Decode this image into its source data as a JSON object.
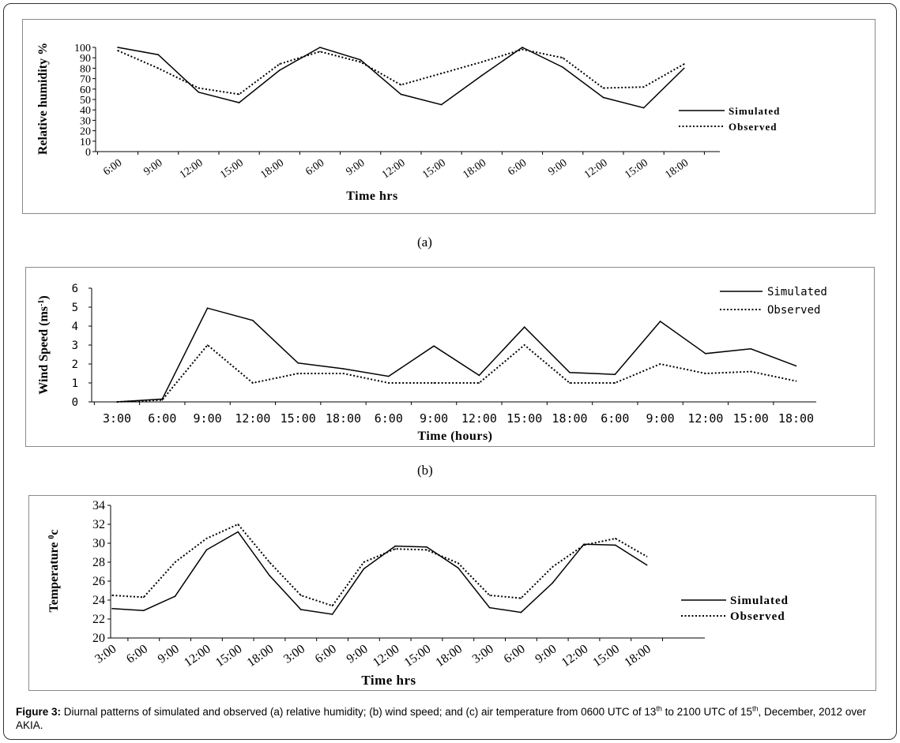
{
  "figure": {
    "sublabels": [
      "(a)",
      "(b)"
    ],
    "caption_label": "Figure 3:",
    "caption_parts": [
      "Diurnal patterns of simulated and observed (a) relative humidity; (b) wind speed; and (c) air temperature from 0600 UTC of 13",
      "th",
      " to 2100 UTC of 15",
      "th",
      ", December, 2012 over AKIA."
    ]
  },
  "chart_data": [
    {
      "type": "line",
      "categories": [
        "6:00",
        "9:00",
        "12:00",
        "15:00",
        "18:00",
        "6:00",
        "9:00",
        "12:00",
        "15:00",
        "18:00",
        "6:00",
        "9:00",
        "12:00",
        "15:00",
        "18:00"
      ],
      "series": [
        {
          "name": "Simulated",
          "style": "solid",
          "color": "#000000",
          "values": [
            100,
            93,
            57,
            47,
            78,
            100,
            88,
            55,
            45,
            73,
            100,
            81,
            52,
            42,
            80
          ]
        },
        {
          "name": "Observed",
          "style": "dotted",
          "color": "#000000",
          "values": [
            97,
            80,
            61,
            55,
            84,
            96,
            86,
            64,
            75,
            86,
            98,
            90,
            61,
            62,
            84
          ]
        }
      ],
      "xlabel": "Time hrs",
      "ylabel": "Relative humidity %",
      "ylim": [
        0,
        100
      ],
      "yticks": [
        0,
        10,
        20,
        30,
        40,
        50,
        60,
        70,
        80,
        90,
        100
      ],
      "grid": false,
      "legend_position": "right"
    },
    {
      "type": "line",
      "categories": [
        "3:00",
        "6:00",
        "9:00",
        "12:00",
        "15:00",
        "18:00",
        "6:00",
        "9:00",
        "12:00",
        "15:00",
        "18:00",
        "6:00",
        "9:00",
        "12:00",
        "15:00",
        "18:00"
      ],
      "series": [
        {
          "name": "Simulated",
          "style": "solid",
          "color": "#000000",
          "values": [
            0,
            0.15,
            4.95,
            4.3,
            2.05,
            1.75,
            1.35,
            2.95,
            1.4,
            3.95,
            1.55,
            1.45,
            4.25,
            2.55,
            2.8,
            1.9
          ]
        },
        {
          "name": "Observed",
          "style": "dotted",
          "color": "#000000",
          "values": [
            0,
            0.1,
            3.0,
            1.0,
            1.5,
            1.5,
            1.0,
            1.0,
            1.0,
            3.0,
            1.0,
            1.0,
            2.0,
            1.5,
            1.6,
            1.1
          ]
        }
      ],
      "xlabel": "Time (hours)",
      "ylabel": "Wind Speed (ms",
      "ylabel_sup": "-1",
      "ylabel_end": ")",
      "ylim": [
        0,
        6
      ],
      "yticks": [
        0,
        1,
        2,
        3,
        4,
        5,
        6
      ],
      "grid": false,
      "legend_position": "top-right"
    },
    {
      "type": "line",
      "categories": [
        "3:00",
        "6:00",
        "9:00",
        "12:00",
        "15:00",
        "18:00",
        "3:00",
        "6:00",
        "9:00",
        "12:00",
        "15:00",
        "18:00",
        "3:00",
        "6:00",
        "9:00",
        "12:00",
        "15:00",
        "18:00"
      ],
      "series": [
        {
          "name": "Simulated",
          "style": "solid",
          "color": "#000000",
          "values": [
            23.1,
            22.9,
            24.4,
            29.3,
            31.2,
            26.6,
            23.0,
            22.5,
            27.3,
            29.7,
            29.6,
            27.4,
            23.2,
            22.7,
            25.8,
            29.9,
            29.8,
            27.7
          ]
        },
        {
          "name": "Observed",
          "style": "dotted",
          "color": "#000000",
          "values": [
            24.5,
            24.3,
            28.0,
            30.5,
            32.0,
            28.0,
            24.5,
            23.4,
            28.0,
            29.4,
            29.3,
            27.9,
            24.5,
            24.2,
            27.5,
            29.8,
            30.5,
            28.6
          ]
        }
      ],
      "xlabel": "Time hrs",
      "ylabel": "Temperature ",
      "ylabel_sup": "0",
      "ylabel_end": "c",
      "ylim": [
        20,
        34
      ],
      "yticks": [
        20,
        22,
        24,
        26,
        28,
        30,
        32,
        34
      ],
      "grid": false,
      "legend_position": "right"
    }
  ]
}
